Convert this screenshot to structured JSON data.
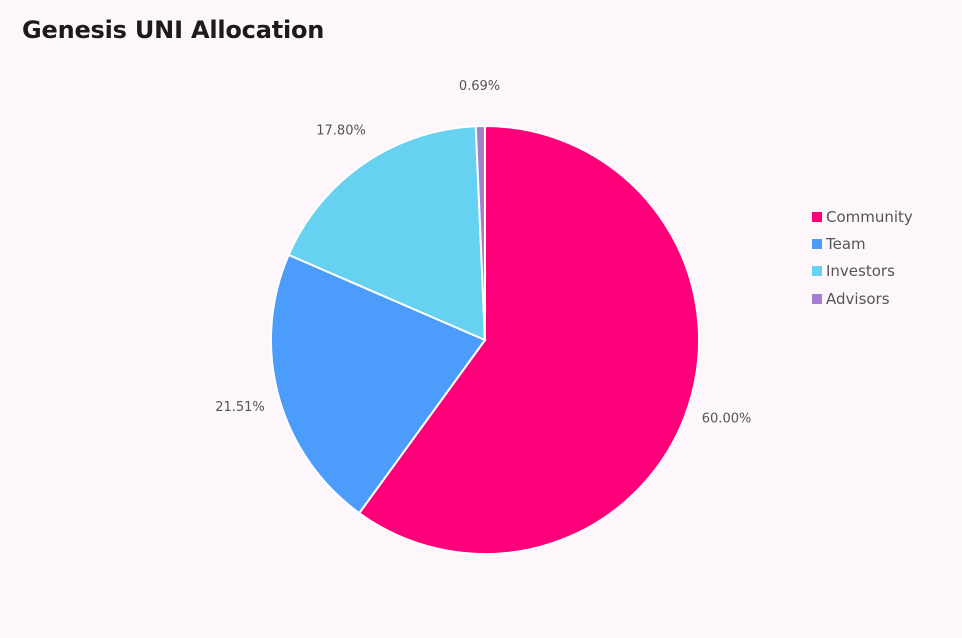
{
  "chart_data": {
    "type": "pie",
    "title": "Genesis UNI Allocation",
    "categories": [
      "Community",
      "Team",
      "Investors",
      "Advisors"
    ],
    "values": [
      60.0,
      21.51,
      17.8,
      0.69
    ],
    "labels": [
      "60.00%",
      "21.51%",
      "17.80%",
      "0.69%"
    ],
    "colors": [
      "#ff007a",
      "#4c9dfb",
      "#66d1f0",
      "#a47fd0"
    ],
    "legend_position": "right",
    "start": "top",
    "direction": "clockwise"
  }
}
